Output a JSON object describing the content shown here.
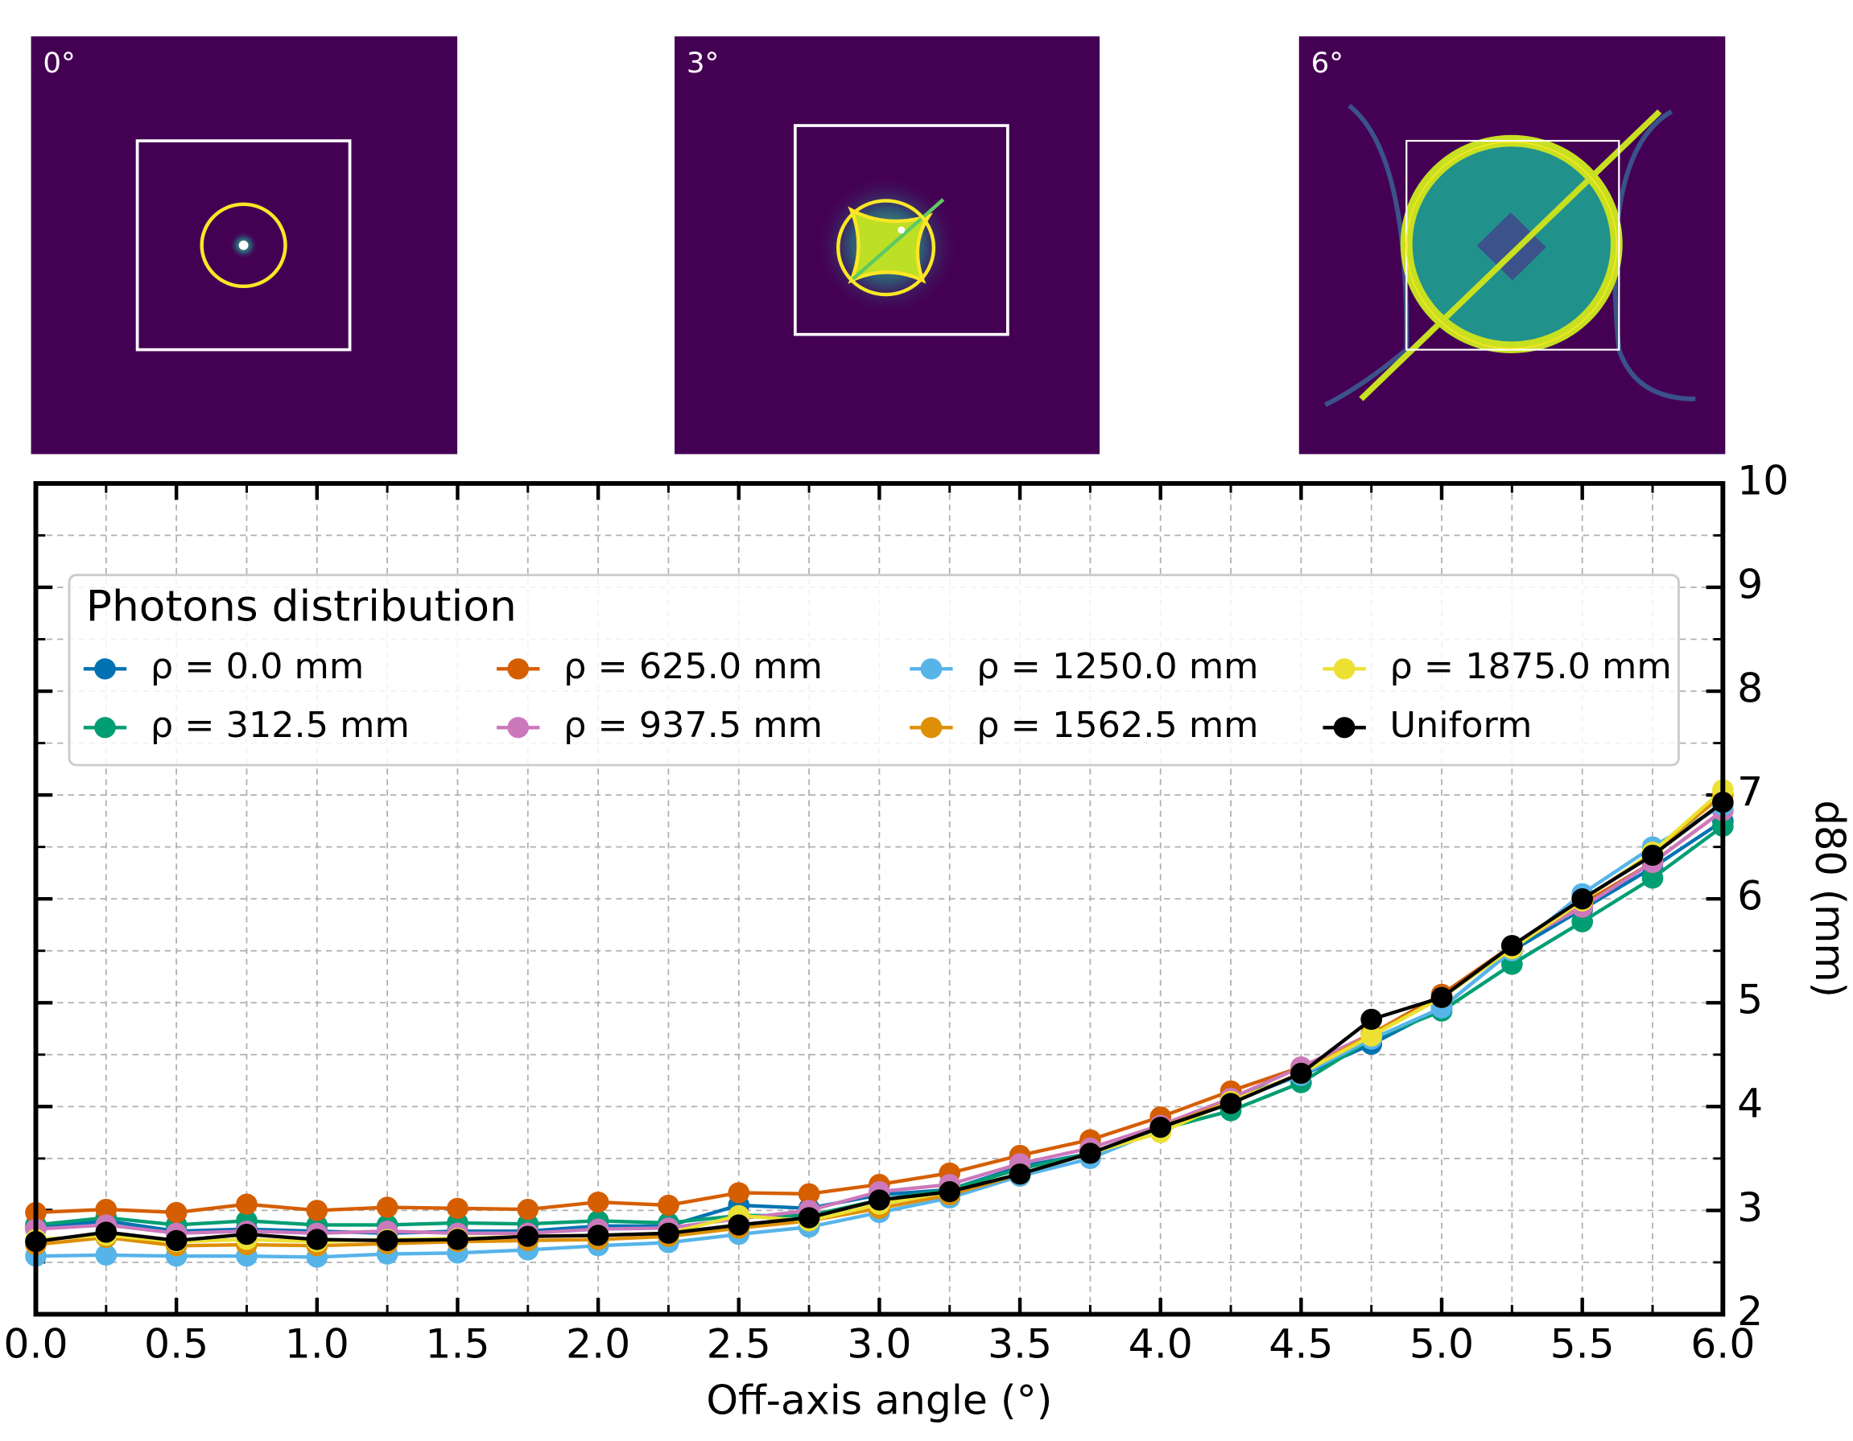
{
  "panels": [
    {
      "label": "0°"
    },
    {
      "label": "3°"
    },
    {
      "label": "6°"
    }
  ],
  "chart_data": {
    "type": "line",
    "xlabel": "Off-axis angle (°)",
    "ylabel": "d80 (mm)",
    "x": [
      0,
      0.25,
      0.5,
      0.75,
      1,
      1.25,
      1.5,
      1.75,
      2,
      2.25,
      2.5,
      2.75,
      3,
      3.25,
      3.5,
      3.75,
      4,
      4.25,
      4.5,
      4.75,
      5,
      5.25,
      5.5,
      5.75,
      6
    ],
    "xlim": [
      0,
      6
    ],
    "ylim": [
      2,
      10
    ],
    "xticks": [
      {
        "value": 0,
        "label": "0.0"
      },
      0.5,
      {
        "value": 1,
        "label": "1.0"
      },
      1.5,
      {
        "value": 2,
        "label": "2.0"
      },
      2.5,
      {
        "value": 3,
        "label": "3.0"
      },
      3.5,
      {
        "value": 4,
        "label": "4.0"
      },
      4.5,
      {
        "value": 5,
        "label": "5.0"
      },
      5.5,
      {
        "value": 6,
        "label": "6.0"
      }
    ],
    "yticks": [
      2,
      3,
      4,
      5,
      6,
      7,
      8,
      9,
      10
    ],
    "grid": true,
    "legend_title": "Photons distribution",
    "legend_position": "upper-left",
    "series": [
      {
        "name": "ρ = 0.0 mm",
        "color": "#0173b2",
        "values": [
          2.83,
          2.9,
          2.8,
          2.82,
          2.8,
          2.78,
          2.8,
          2.8,
          2.85,
          2.85,
          3.05,
          3.02,
          3.15,
          3.2,
          3.42,
          3.55,
          3.8,
          4.08,
          4.3,
          4.6,
          4.95,
          5.5,
          5.9,
          6.3,
          6.75
        ]
      },
      {
        "name": "ρ = 312.5 mm",
        "color": "#029e73",
        "values": [
          2.86,
          2.93,
          2.86,
          2.9,
          2.86,
          2.86,
          2.88,
          2.87,
          2.9,
          2.88,
          2.95,
          2.95,
          3.1,
          3.2,
          3.4,
          3.55,
          3.78,
          3.96,
          4.23,
          4.65,
          4.92,
          5.37,
          5.78,
          6.2,
          6.7
        ]
      },
      {
        "name": "ρ = 625.0 mm",
        "color": "#d55e00",
        "values": [
          2.98,
          3.01,
          2.98,
          3.06,
          3.0,
          3.03,
          3.02,
          3.01,
          3.08,
          3.05,
          3.17,
          3.16,
          3.25,
          3.36,
          3.53,
          3.68,
          3.9,
          4.15,
          4.38,
          4.7,
          5.08,
          5.55,
          5.95,
          6.35,
          6.85
        ]
      },
      {
        "name": "ρ = 937.5 mm",
        "color": "#cc78bc",
        "values": [
          2.82,
          2.86,
          2.78,
          2.8,
          2.78,
          2.8,
          2.78,
          2.78,
          2.82,
          2.83,
          2.92,
          3.0,
          3.18,
          3.25,
          3.45,
          3.6,
          3.82,
          4.08,
          4.38,
          4.7,
          5.05,
          5.55,
          5.92,
          6.35,
          6.85
        ]
      },
      {
        "name": "ρ = 1250.0 mm",
        "color": "#56b4e9",
        "values": [
          2.56,
          2.57,
          2.56,
          2.56,
          2.55,
          2.58,
          2.59,
          2.62,
          2.66,
          2.69,
          2.77,
          2.84,
          2.98,
          3.12,
          3.33,
          3.5,
          3.78,
          4.05,
          4.3,
          4.65,
          4.95,
          5.5,
          6.05,
          6.5,
          6.9
        ]
      },
      {
        "name": "ρ = 1562.5 mm",
        "color": "#de8f05",
        "values": [
          2.67,
          2.74,
          2.66,
          2.67,
          2.66,
          2.68,
          2.7,
          2.71,
          2.72,
          2.75,
          2.83,
          2.9,
          3.02,
          3.15,
          3.35,
          3.55,
          3.8,
          4.05,
          4.32,
          4.7,
          5.05,
          5.52,
          5.98,
          6.45,
          7.0
        ]
      },
      {
        "name": "ρ = 1875.0 mm",
        "color": "#ece133",
        "values": [
          2.72,
          2.76,
          2.7,
          2.72,
          2.7,
          2.72,
          2.73,
          2.75,
          2.76,
          2.78,
          2.95,
          2.9,
          3.06,
          3.18,
          3.35,
          3.55,
          3.75,
          4.05,
          4.32,
          4.68,
          5.05,
          5.52,
          5.98,
          6.45,
          7.05
        ]
      },
      {
        "name": "Uniform",
        "color": "#000000",
        "values": [
          2.7,
          2.79,
          2.71,
          2.77,
          2.72,
          2.71,
          2.72,
          2.75,
          2.76,
          2.78,
          2.86,
          2.93,
          3.1,
          3.18,
          3.35,
          3.55,
          3.8,
          4.03,
          4.32,
          4.84,
          5.05,
          5.55,
          6.0,
          6.42,
          6.93
        ]
      }
    ]
  }
}
